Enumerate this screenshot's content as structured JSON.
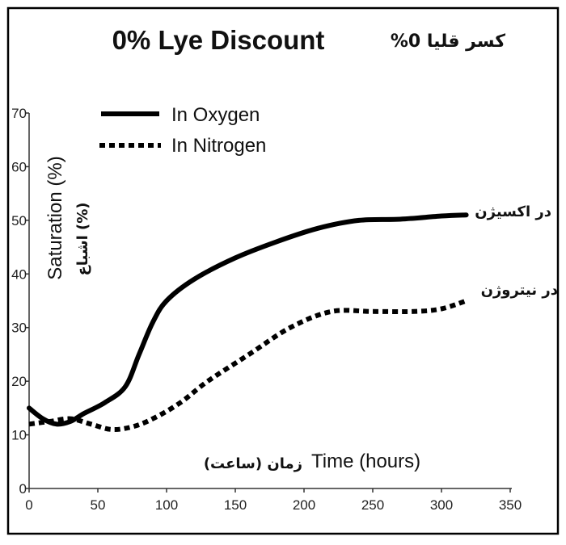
{
  "chart_data": {
    "type": "line",
    "title": "0% Lye Discount",
    "title_fa": "%0 کسر قلیا",
    "xlabel": "Time (hours)",
    "xlabel_fa": "زمان (ساعت)",
    "ylabel": "Saturation (%)",
    "ylabel_fa": "اشباع (%)",
    "xlim": [
      0,
      350
    ],
    "ylim": [
      0,
      70
    ],
    "xticks": [
      "0",
      "50",
      "100",
      "150",
      "200",
      "250",
      "300",
      "350"
    ],
    "yticks": [
      "0",
      "10",
      "20",
      "30",
      "40",
      "50",
      "60",
      "70"
    ],
    "legend_position": "top-left",
    "series": [
      {
        "name": "In Oxygen",
        "name_fa": "در اکسیژن",
        "style": "solid",
        "x": [
          0,
          10,
          20,
          30,
          40,
          55,
          70,
          80,
          90,
          100,
          120,
          150,
          180,
          210,
          240,
          270,
          300,
          318
        ],
        "y": [
          15,
          13,
          12,
          12.5,
          14,
          16,
          19,
          25,
          31,
          35,
          39,
          43,
          46,
          48.5,
          50,
          50.2,
          50.8,
          51
        ]
      },
      {
        "name": "In Nitrogen",
        "name_fa": "در نیتروژن",
        "style": "dotted",
        "x": [
          0,
          15,
          30,
          45,
          60,
          75,
          90,
          110,
          130,
          160,
          190,
          220,
          250,
          280,
          300,
          318
        ],
        "y": [
          12,
          12.5,
          13,
          12,
          11,
          11.5,
          13,
          16,
          20,
          25,
          30,
          33,
          33,
          33,
          33.5,
          35
        ]
      }
    ]
  }
}
